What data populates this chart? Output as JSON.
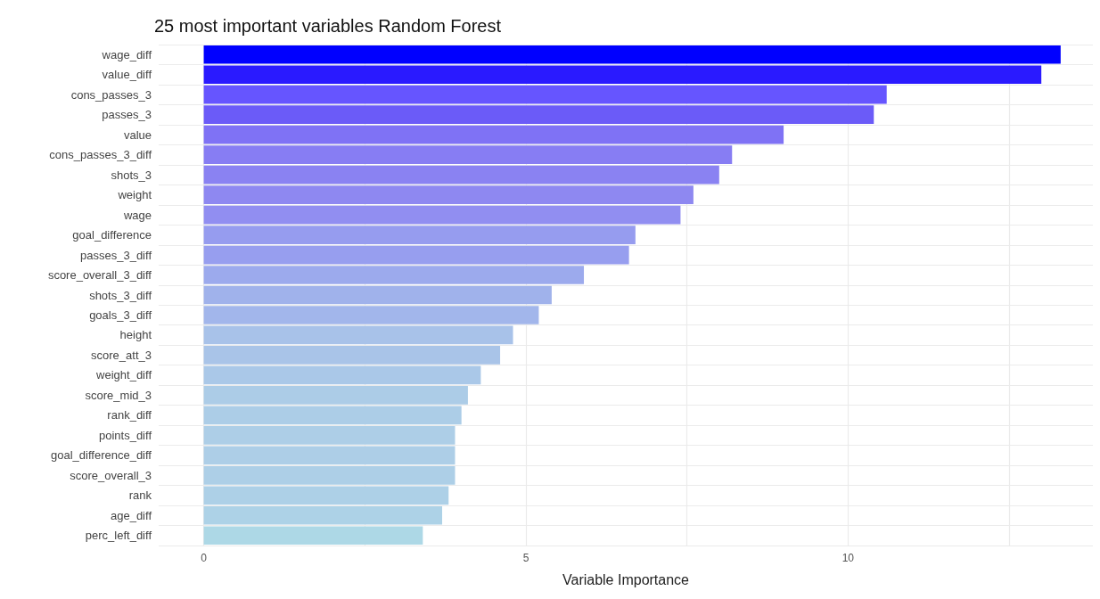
{
  "chart_data": {
    "type": "bar",
    "orientation": "horizontal",
    "title": "25 most important variables Random Forest",
    "xlabel": "Variable Importance",
    "categories": [
      "wage_diff",
      "value_diff",
      "cons_passes_3",
      "passes_3",
      "value",
      "cons_passes_3_diff",
      "shots_3",
      "weight",
      "wage",
      "goal_difference",
      "passes_3_diff",
      "score_overall_3_diff",
      "shots_3_diff",
      "goals_3_diff",
      "height",
      "score_att_3",
      "weight_diff",
      "score_mid_3",
      "rank_diff",
      "points_diff",
      "goal_difference_diff",
      "score_overall_3",
      "rank",
      "age_diff",
      "perc_left_diff"
    ],
    "values": [
      13.3,
      13.0,
      10.6,
      10.4,
      9.0,
      8.2,
      8.0,
      7.6,
      7.4,
      6.7,
      6.6,
      5.9,
      5.4,
      5.2,
      4.8,
      4.6,
      4.3,
      4.1,
      4.0,
      3.9,
      3.9,
      3.9,
      3.8,
      3.7,
      3.4
    ],
    "colors": [
      "#0000ff",
      "#2a1aff",
      "#6655ff",
      "#6b5bf8",
      "#7f72f5",
      "#877df3",
      "#8a82f2",
      "#8e88f1",
      "#918ef1",
      "#969cef",
      "#979eef",
      "#9caaed",
      "#a0b2eb",
      "#a2b6eb",
      "#a8c2e9",
      "#a9c4e8",
      "#aac8e8",
      "#accce7",
      "#accde7",
      "#adcee7",
      "#adcee7",
      "#adcfe7",
      "#add0e7",
      "#add2e7",
      "#add8e6"
    ],
    "xlim": [
      -0.7,
      13.8
    ],
    "xticks": [
      0,
      {
        "value": 2.5,
        "label": null
      },
      5,
      {
        "value": 7.5,
        "label": null
      },
      10,
      {
        "value": 12.5,
        "label": null
      }
    ],
    "grid": true
  }
}
